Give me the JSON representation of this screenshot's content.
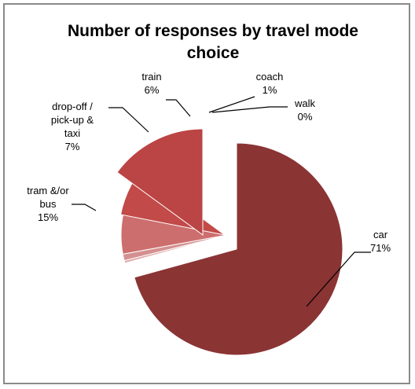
{
  "chart_data": {
    "type": "pie",
    "title_lines": [
      "Number of responses by travel mode",
      "choice"
    ],
    "slices": [
      {
        "category": "car",
        "percent_label": "71%",
        "value": 71,
        "color": "#8b3434"
      },
      {
        "category": "walk",
        "percent_label": "0%",
        "value": 0.4,
        "color": "#e0a8a8"
      },
      {
        "category": "coach",
        "percent_label": "1%",
        "value": 1,
        "color": "#d49090"
      },
      {
        "category": "train",
        "percent_label": "6%",
        "value": 6,
        "color": "#cd6e6e"
      },
      {
        "category": "drop-off / pick-up & taxi",
        "percent_label": "7%",
        "value": 7,
        "color": "#c24a48"
      },
      {
        "category": "tram &/or bus",
        "percent_label": "15%",
        "value": 15,
        "color": "#bb4544"
      }
    ],
    "labels": [
      {
        "lines": [
          "car",
          "71%"
        ]
      },
      {
        "lines": [
          "walk",
          "0%"
        ]
      },
      {
        "lines": [
          "coach",
          "1%"
        ]
      },
      {
        "lines": [
          "train",
          "6%"
        ]
      },
      {
        "lines": [
          "drop-off /",
          "pick-up &",
          "taxi",
          "7%"
        ]
      },
      {
        "lines": [
          "tram &/or",
          "bus",
          "15%"
        ]
      }
    ],
    "exploded": true
  }
}
